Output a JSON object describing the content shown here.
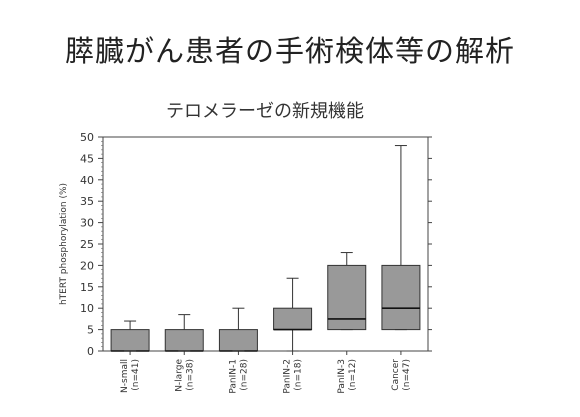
{
  "slide": {
    "title": "膵臓がん患者の手術検体等の解析"
  },
  "chart_data": {
    "type": "box",
    "title": "テロメラーゼの新規機能",
    "xlabel": "",
    "ylabel": "hTERT phosphorylation (%)",
    "ylim": [
      0,
      50
    ],
    "yticks": [
      0,
      5,
      10,
      15,
      20,
      25,
      30,
      35,
      40,
      45,
      50
    ],
    "grid": false,
    "box_color": "#999999",
    "categories": [
      {
        "name": "N-small",
        "n": "(n=41)",
        "whisker_low": 0,
        "q1": 0,
        "median": 0,
        "q3": 5,
        "whisker_high": 7
      },
      {
        "name": "N-large",
        "n": "(n=38)",
        "whisker_low": 0,
        "q1": 0,
        "median": 0,
        "q3": 5,
        "whisker_high": 8.5
      },
      {
        "name": "PanIN-1",
        "n": "(n=28)",
        "whisker_low": 0,
        "q1": 0,
        "median": 0,
        "q3": 5,
        "whisker_high": 10
      },
      {
        "name": "PanIN-2",
        "n": "(n=18)",
        "whisker_low": 0,
        "q1": 5,
        "median": 5,
        "q3": 10,
        "whisker_high": 17
      },
      {
        "name": "PanIN-3",
        "n": "(n=12)",
        "whisker_low": 5,
        "q1": 5,
        "median": 7.5,
        "q3": 20,
        "whisker_high": 23
      },
      {
        "name": "Cancer",
        "n": "(n=47)",
        "whisker_low": 5,
        "q1": 5,
        "median": 10,
        "q3": 20,
        "whisker_high": 48
      }
    ]
  }
}
